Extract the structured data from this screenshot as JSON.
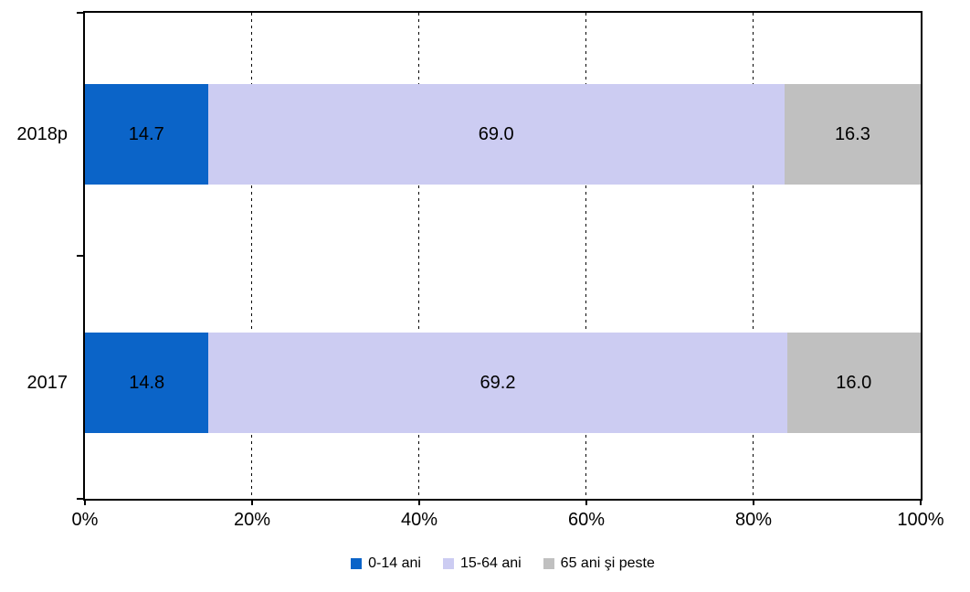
{
  "chart_data": {
    "type": "bar",
    "orientation": "horizontal",
    "stacked": true,
    "title": "",
    "categories": [
      "2018p",
      "2017"
    ],
    "series": [
      {
        "name": "0-14 ani",
        "color": "#0B64C8",
        "values": [
          14.7,
          14.8
        ],
        "labels": [
          "14.7",
          "14.8"
        ]
      },
      {
        "name": "15-64 ani",
        "color": "#CCCCF2",
        "values": [
          69.0,
          69.2
        ],
        "labels": [
          "69.0",
          "69.2"
        ]
      },
      {
        "name": "65 ani şi peste",
        "color": "#C0C0C0",
        "values": [
          16.3,
          16.0
        ],
        "labels": [
          "16.3",
          "16.0"
        ]
      }
    ],
    "xlim": [
      0,
      100
    ],
    "x_ticks": [
      {
        "value": 0,
        "label": "0%"
      },
      {
        "value": 20,
        "label": "20%"
      },
      {
        "value": 40,
        "label": "40%"
      },
      {
        "value": 60,
        "label": "60%"
      },
      {
        "value": 80,
        "label": "80%"
      },
      {
        "value": 100,
        "label": "100%"
      }
    ],
    "gridlines": [
      20,
      40,
      60,
      80
    ],
    "grid": "vertical-dashed",
    "legend_position": "bottom",
    "axis_color": "#000000",
    "background_color": "#FFFFFF",
    "value_label_color": "#000000"
  }
}
